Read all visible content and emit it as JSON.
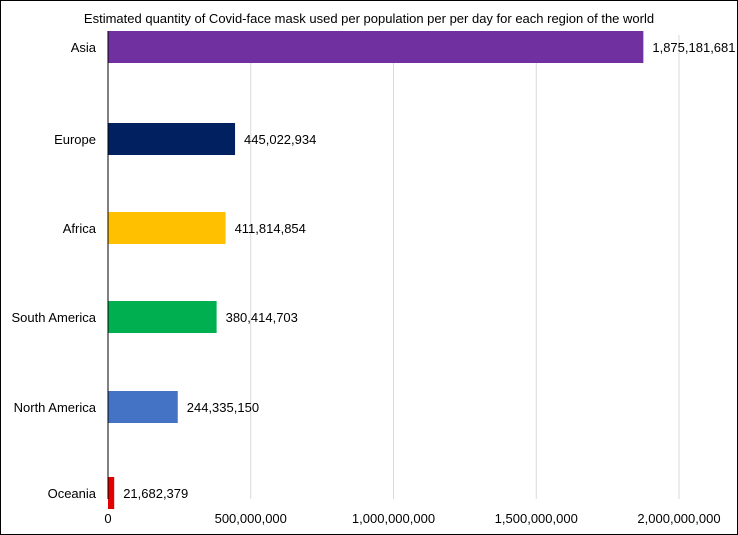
{
  "chart_data": {
    "type": "bar",
    "orientation": "horizontal",
    "title": "Estimated quantity of Covid-face mask used per population per per day for each region of the world",
    "xlabel": "",
    "ylabel": "",
    "categories": [
      "Asia",
      "Europe",
      "Africa",
      "South America",
      "North America",
      "Oceania"
    ],
    "values": [
      1875181681,
      445022934,
      411814854,
      380414703,
      244335150,
      21682379
    ],
    "data_labels": [
      "1,875,181,681",
      "445,022,934",
      "411,814,854",
      "380,414,703",
      "244,335,150",
      "21,682,379"
    ],
    "colors": [
      "#7030a0",
      "#002060",
      "#ffc000",
      "#00b050",
      "#4472c4",
      "#e00000"
    ],
    "xlim": [
      0,
      2000000000
    ],
    "x_ticks": [
      0,
      500000000,
      1000000000,
      1500000000,
      2000000000
    ],
    "x_tick_labels": [
      "0",
      "500,000,000",
      "1,000,000,000",
      "1,500,000,000",
      "2,000,000,000"
    ],
    "grid": true,
    "legend": "none"
  }
}
